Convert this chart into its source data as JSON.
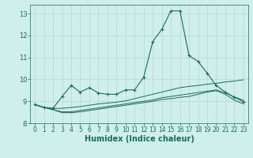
{
  "xlabel": "Humidex (Indice chaleur)",
  "bg_color": "#cff0ea",
  "grid_color": "#c0d8d4",
  "line_color": "#1a6b5a",
  "xlim": [
    -0.5,
    23.5
  ],
  "ylim": [
    8.2,
    13.4
  ],
  "yticks": [
    8,
    9,
    10,
    11,
    12,
    13
  ],
  "xticks": [
    0,
    1,
    2,
    3,
    4,
    5,
    6,
    7,
    8,
    9,
    10,
    11,
    12,
    13,
    14,
    15,
    16,
    17,
    18,
    19,
    20,
    21,
    22,
    23
  ],
  "lines": [
    {
      "x": [
        0,
        1,
        2,
        3,
        4,
        5,
        6,
        7,
        8,
        9,
        10,
        11,
        12,
        13,
        14,
        15,
        16,
        17,
        18,
        19,
        20,
        21,
        22,
        23
      ],
      "y": [
        8.85,
        8.72,
        8.68,
        9.22,
        9.72,
        9.42,
        9.62,
        9.38,
        9.32,
        9.32,
        9.52,
        9.52,
        10.1,
        11.72,
        12.28,
        13.12,
        13.12,
        11.08,
        10.82,
        10.28,
        9.72,
        9.42,
        9.18,
        8.98
      ],
      "marker": true
    },
    {
      "x": [
        0,
        1,
        2,
        3,
        4,
        5,
        6,
        7,
        8,
        9,
        10,
        11,
        12,
        13,
        14,
        15,
        16,
        17,
        18,
        19,
        20,
        21,
        22,
        23
      ],
      "y": [
        8.85,
        8.72,
        8.68,
        8.68,
        8.72,
        8.76,
        8.82,
        8.88,
        8.92,
        8.96,
        9.02,
        9.12,
        9.22,
        9.32,
        9.42,
        9.52,
        9.62,
        9.68,
        9.72,
        9.78,
        9.82,
        9.88,
        9.92,
        9.98
      ],
      "marker": false
    },
    {
      "x": [
        0,
        1,
        2,
        3,
        4,
        5,
        6,
        7,
        8,
        9,
        10,
        11,
        12,
        13,
        14,
        15,
        16,
        17,
        18,
        19,
        20,
        21,
        22,
        23
      ],
      "y": [
        8.85,
        8.72,
        8.62,
        8.52,
        8.52,
        8.58,
        8.64,
        8.7,
        8.76,
        8.82,
        8.88,
        8.94,
        9.0,
        9.06,
        9.16,
        9.22,
        9.28,
        9.34,
        9.4,
        9.46,
        9.52,
        9.38,
        9.2,
        9.05
      ],
      "marker": false
    },
    {
      "x": [
        0,
        1,
        2,
        3,
        4,
        5,
        6,
        7,
        8,
        9,
        10,
        11,
        12,
        13,
        14,
        15,
        16,
        17,
        18,
        19,
        20,
        21,
        22,
        23
      ],
      "y": [
        8.85,
        8.72,
        8.62,
        8.48,
        8.48,
        8.52,
        8.58,
        8.64,
        8.7,
        8.76,
        8.82,
        8.88,
        8.94,
        9.0,
        9.08,
        9.12,
        9.18,
        9.22,
        9.32,
        9.42,
        9.48,
        9.32,
        9.05,
        8.88
      ],
      "marker": false
    }
  ]
}
